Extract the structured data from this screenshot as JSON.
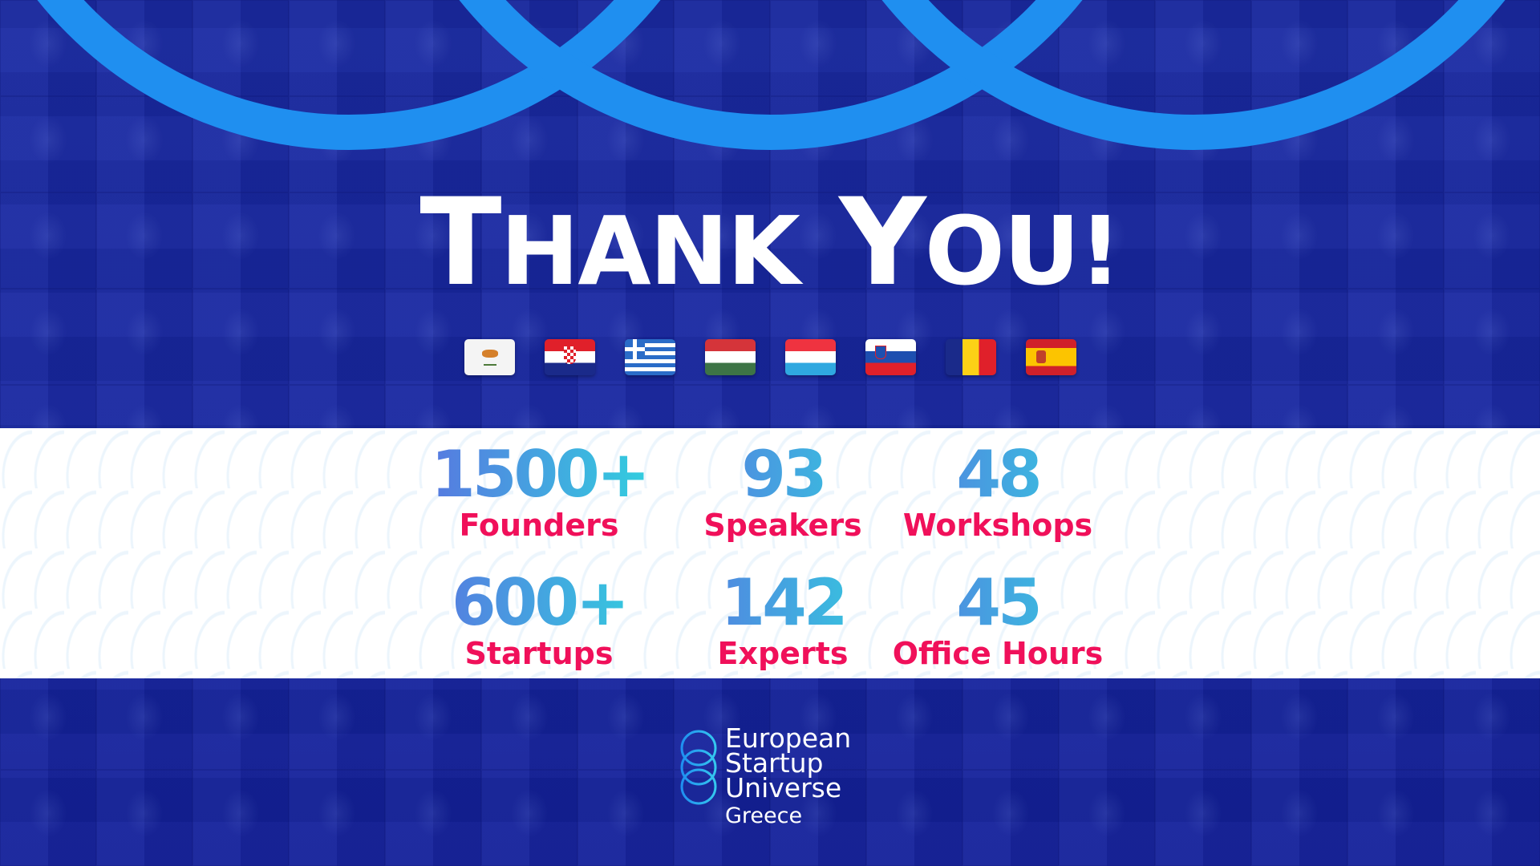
{
  "title": {
    "first": "T",
    "first_rest": "HANK",
    "second": "Y",
    "second_rest": "OU!"
  },
  "colors": {
    "background": "#14229a",
    "arc": "#1f8ff0",
    "number_gradient_start": "#5a72e0",
    "number_gradient_end": "#2fd5df",
    "label": "#f0105a"
  },
  "flags": [
    "cyprus-flag",
    "croatia-flag",
    "greece-flag",
    "hungary-flag",
    "luxembourg-flag",
    "slovenia-flag",
    "romania-flag",
    "spain-flag"
  ],
  "stats": [
    {
      "value": "1500+",
      "label": "Founders"
    },
    {
      "value": "93",
      "label": "Speakers"
    },
    {
      "value": "48",
      "label": "Workshops"
    },
    {
      "value": "600+",
      "label": "Startups"
    },
    {
      "value": "142",
      "label": "Experts"
    },
    {
      "value": "45",
      "label": "Office Hours"
    }
  ],
  "logo": {
    "line1": "European",
    "line2": "Startup",
    "line3": "Universe",
    "line4": "Greece"
  }
}
